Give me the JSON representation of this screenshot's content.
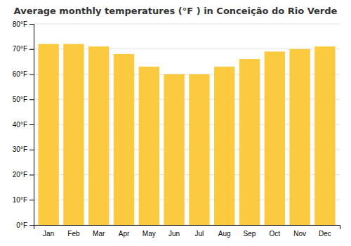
{
  "chart_data": {
    "type": "bar",
    "title": "Average monthly temperatures (°F ) in Conceição do Rio Verde",
    "categories": [
      "Jan",
      "Feb",
      "Mar",
      "Apr",
      "May",
      "Jun",
      "Jul",
      "Aug",
      "Sep",
      "Oct",
      "Nov",
      "Dec"
    ],
    "values": [
      72,
      72,
      71,
      68,
      63,
      60,
      60,
      63,
      66,
      69,
      70,
      71
    ],
    "color": "#FBCA3E",
    "ylim": [
      0,
      80
    ],
    "yticks": [
      {
        "value": 0,
        "label": "0°F"
      },
      {
        "value": 10,
        "label": "10°F"
      },
      {
        "value": 20,
        "label": "20°F"
      },
      {
        "value": 30,
        "label": "30°F"
      },
      {
        "value": 40,
        "label": "40°F"
      },
      {
        "value": 50,
        "label": "50°F"
      },
      {
        "value": 60,
        "label": "60°F"
      },
      {
        "value": 70,
        "label": "70°F"
      },
      {
        "value": 80,
        "label": "80°F"
      }
    ],
    "grid": true
  }
}
